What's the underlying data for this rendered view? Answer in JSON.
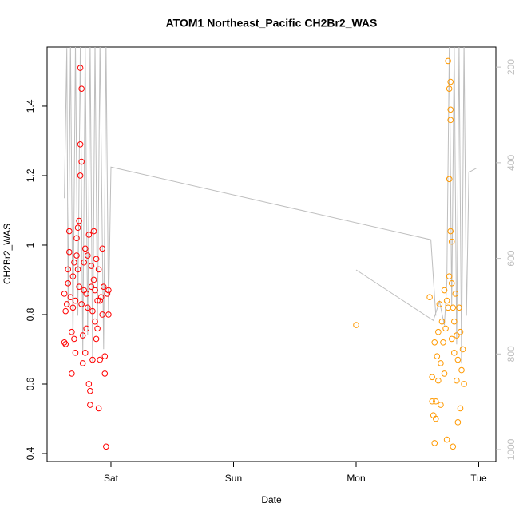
{
  "chart_data": {
    "type": "scatter",
    "title": "ATOM1 Northeast_Pacific CH2Br2_WAS",
    "x_label": "Date",
    "y_label": "CH2Br2_WAS",
    "xlim": [
      -0.521,
      3.14
    ],
    "xticks": [
      {
        "value": 0,
        "label": "Sat"
      },
      {
        "value": 1,
        "label": "Sun"
      },
      {
        "value": 2,
        "label": "Mon"
      },
      {
        "value": 3,
        "label": "Tue"
      }
    ],
    "ylim": [
      0.377,
      1.57
    ],
    "yticks": [
      0.4,
      0.6,
      0.8,
      1.0,
      1.2,
      1.4
    ],
    "y2lim": [
      1025,
      158
    ],
    "y2ticks": [
      200,
      400,
      600,
      800,
      1000
    ],
    "series": [
      {
        "color": "#ff0000",
        "x": [
          -0.38,
          -0.38,
          -0.37,
          -0.37,
          -0.36,
          -0.35,
          -0.35,
          -0.34,
          -0.34,
          -0.33,
          -0.32,
          -0.32,
          -0.31,
          -0.31,
          -0.3,
          -0.3,
          -0.29,
          -0.29,
          -0.28,
          -0.28,
          -0.27,
          -0.27,
          -0.26,
          -0.26,
          -0.25,
          -0.25,
          -0.25,
          -0.24,
          -0.24,
          -0.24,
          -0.23,
          -0.23,
          -0.22,
          -0.22,
          -0.21,
          -0.21,
          -0.2,
          -0.2,
          -0.19,
          -0.19,
          -0.18,
          -0.18,
          -0.17,
          -0.17,
          -0.16,
          -0.16,
          -0.15,
          -0.15,
          -0.14,
          -0.14,
          -0.13,
          -0.13,
          -0.12,
          -0.12,
          -0.11,
          -0.11,
          -0.1,
          -0.1,
          -0.09,
          -0.09,
          -0.08,
          -0.07,
          -0.07,
          -0.06,
          -0.05,
          -0.05,
          -0.04,
          -0.03,
          -0.02,
          -0.02
        ],
        "values": [
          0.86,
          0.72,
          0.81,
          0.715,
          0.83,
          0.93,
          0.89,
          0.98,
          1.04,
          0.85,
          0.63,
          0.75,
          0.82,
          0.91,
          0.95,
          0.73,
          0.69,
          0.84,
          1.02,
          0.97,
          1.05,
          0.93,
          0.88,
          1.07,
          1.51,
          1.29,
          1.2,
          1.24,
          1.45,
          0.83,
          0.66,
          0.74,
          0.95,
          0.87,
          0.69,
          0.99,
          0.86,
          0.76,
          0.82,
          0.97,
          1.03,
          0.6,
          0.58,
          0.54,
          0.88,
          0.94,
          0.67,
          0.81,
          1.04,
          0.9,
          0.78,
          0.87,
          0.96,
          0.73,
          0.84,
          0.76,
          0.93,
          0.53,
          0.67,
          0.84,
          0.85,
          0.99,
          0.8,
          0.88,
          0.63,
          0.68,
          0.42,
          0.86,
          0.8,
          0.87
        ]
      },
      {
        "color": "#ff9900",
        "x": [
          2.0,
          2.6,
          2.62,
          2.62,
          2.63,
          2.64,
          2.64,
          2.65,
          2.65,
          2.66,
          2.67,
          2.67,
          2.68,
          2.69,
          2.69,
          2.7,
          2.71,
          2.72,
          2.72,
          2.73,
          2.74,
          2.74,
          2.75,
          2.75,
          2.76,
          2.76,
          2.76,
          2.77,
          2.77,
          2.77,
          2.77,
          2.78,
          2.78,
          2.78,
          2.79,
          2.79,
          2.8,
          2.8,
          2.81,
          2.82,
          2.82,
          2.83,
          2.83,
          2.84,
          2.85,
          2.85,
          2.86,
          2.87,
          2.88
        ],
        "values": [
          0.77,
          0.85,
          0.55,
          0.62,
          0.51,
          0.43,
          0.72,
          0.55,
          0.5,
          0.68,
          0.75,
          0.61,
          0.83,
          0.54,
          0.66,
          0.78,
          0.72,
          0.63,
          0.87,
          0.76,
          0.44,
          0.84,
          0.82,
          1.53,
          1.45,
          1.19,
          0.91,
          1.47,
          1.39,
          1.36,
          1.04,
          1.01,
          0.89,
          0.73,
          0.82,
          0.42,
          0.69,
          0.78,
          0.86,
          0.74,
          0.61,
          0.49,
          0.67,
          0.82,
          0.53,
          0.75,
          0.64,
          0.7,
          0.6
        ]
      },
      {
        "type": "line",
        "axis": "y2",
        "color": "#bebebe",
        "x": [
          -0.38,
          -0.36,
          -0.35,
          -0.33,
          -0.31,
          -0.29,
          -0.27,
          -0.25,
          -0.23,
          -0.21,
          -0.19,
          -0.17,
          -0.15,
          -0.13,
          -0.11,
          -0.09,
          -0.06,
          -0.04,
          -0.02,
          0.0,
          2.61,
          2.65,
          null,
          2.0,
          2.63,
          2.68,
          2.72,
          2.74,
          2.76,
          2.78,
          2.8,
          2.82,
          2.84,
          2.86,
          2.88,
          2.9,
          2.92,
          2.99
        ],
        "values": [
          474,
          160,
          700,
          150,
          780,
          150,
          720,
          150,
          800,
          150,
          760,
          150,
          820,
          150,
          740,
          150,
          790,
          150,
          720,
          409,
          561,
          720,
          null,
          624,
          730,
          690,
          740,
          650,
          150,
          700,
          150,
          780,
          150,
          820,
          150,
          720,
          420,
          410
        ]
      }
    ]
  }
}
